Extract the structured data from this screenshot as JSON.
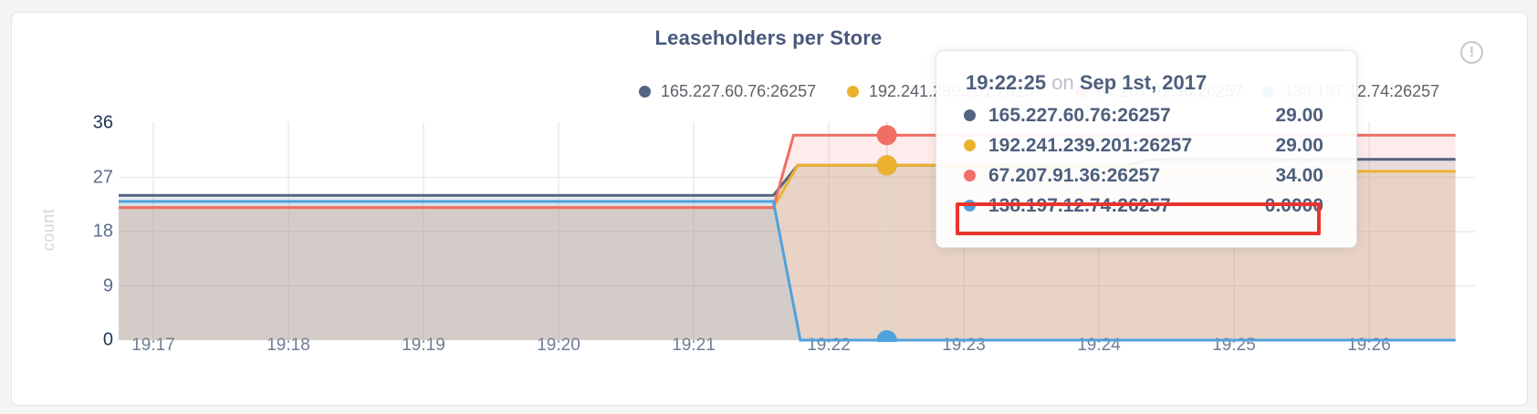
{
  "colors": {
    "page_bg": "#f4f4f5",
    "card_bg": "#ffffff",
    "accent_red_annotation": "#e8342c",
    "grid": "#ececec",
    "hover_line": "#d6d6d6",
    "tick_dark": "#243754",
    "tick_mid": "#5d6d8c"
  },
  "header": {
    "title": "Leaseholders per Store",
    "info_icon": "!"
  },
  "legend": {
    "items": [
      {
        "label": "165.227.60.76:26257",
        "color": "#556480",
        "x": 700
      },
      {
        "label": "192.241.239.201:26257",
        "color": "#ecb22e",
        "x": 928
      },
      {
        "label": "67.207.91.36:26257",
        "color": "#f06e64",
        "x": 1178
      },
      {
        "label": "138.197.12.74:26257",
        "color": "#4fa2dc",
        "x": 1383
      }
    ]
  },
  "chart_data": {
    "type": "area",
    "title": "Leaseholders per Store",
    "ylabel": "count",
    "xlabel": "",
    "ylim": [
      0,
      36
    ],
    "grid": true,
    "legend_position": "top-right",
    "x_ticks": [
      {
        "label": "19:17",
        "t": 0
      },
      {
        "label": "19:18",
        "t": 1
      },
      {
        "label": "19:19",
        "t": 2
      },
      {
        "label": "19:20",
        "t": 3
      },
      {
        "label": "19:21",
        "t": 4
      },
      {
        "label": "19:22",
        "t": 5
      },
      {
        "label": "19:23",
        "t": 6
      },
      {
        "label": "19:24",
        "t": 7
      },
      {
        "label": "19:25",
        "t": 8
      },
      {
        "label": "19:26",
        "t": 9
      }
    ],
    "y_ticks": [
      {
        "label": "0",
        "value": 0,
        "emphasis": true,
        "gridline": false
      },
      {
        "label": "9",
        "value": 9,
        "emphasis": false,
        "gridline": true
      },
      {
        "label": "18",
        "value": 18,
        "emphasis": false,
        "gridline": true
      },
      {
        "label": "27",
        "value": 27,
        "emphasis": false,
        "gridline": true
      },
      {
        "label": "36",
        "value": 36,
        "emphasis": true,
        "gridline": false
      }
    ],
    "series": [
      {
        "name": "165.227.60.76:26257",
        "color": "#556480",
        "points": [
          [
            -0.26,
            24
          ],
          [
            4.59,
            24
          ],
          [
            4.77,
            29
          ],
          [
            7.2,
            29
          ],
          [
            7.4,
            30
          ],
          [
            9.64,
            30
          ]
        ]
      },
      {
        "name": "192.241.239.201:26257",
        "color": "#ecb22e",
        "points": [
          [
            -0.26,
            22
          ],
          [
            4.59,
            22
          ],
          [
            4.77,
            29
          ],
          [
            7.2,
            29
          ],
          [
            7.4,
            28
          ],
          [
            9.64,
            28
          ]
        ]
      },
      {
        "name": "67.207.91.36:26257",
        "color": "#f06e64",
        "points": [
          [
            -0.26,
            22
          ],
          [
            4.59,
            22
          ],
          [
            4.74,
            34
          ],
          [
            9.64,
            34
          ]
        ]
      },
      {
        "name": "138.197.12.74:26257",
        "color": "#4fa2dc",
        "points": [
          [
            -0.26,
            23
          ],
          [
            4.59,
            23
          ],
          [
            4.79,
            0
          ],
          [
            9.64,
            0
          ]
        ]
      }
    ],
    "hover": {
      "t": 5.43,
      "dot_values": [
        {
          "series": "165.227.60.76:26257",
          "value": 29
        },
        {
          "series": "192.241.239.201:26257",
          "value": 29
        },
        {
          "series": "67.207.91.36:26257",
          "value": 34
        },
        {
          "series": "138.197.12.74:26257",
          "value": 0
        }
      ]
    }
  },
  "tooltip": {
    "time": "19:22:25",
    "conjunction": "on",
    "date": "Sep 1st, 2017",
    "rows": [
      {
        "name": "165.227.60.76:26257",
        "value": "29.00",
        "color": "#556480",
        "highlighted": false
      },
      {
        "name": "192.241.239.201:26257",
        "value": "29.00",
        "color": "#ecb22e",
        "highlighted": false
      },
      {
        "name": "67.207.91.36:26257",
        "value": "34.00",
        "color": "#f06e64",
        "highlighted": false
      },
      {
        "name": "138.197.12.74:26257",
        "value": "0.0000",
        "color": "#4fa2dc",
        "highlighted": true
      }
    ]
  }
}
